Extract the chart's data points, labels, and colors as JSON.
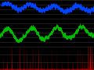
{
  "background_color": "#000000",
  "grid_color": "#333333",
  "blue_color": "#0044ff",
  "green_color": "#00bb00",
  "red_color": "#cc0000",
  "n_points": 2000,
  "grid_lines": 6
}
